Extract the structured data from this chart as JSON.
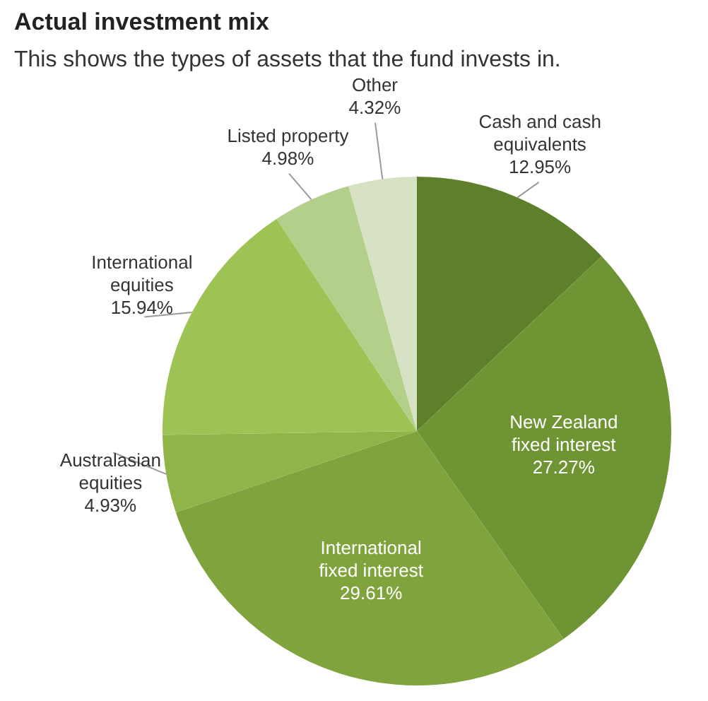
{
  "chart_data": {
    "type": "pie",
    "title": "Actual investment mix",
    "subtitle": "This shows the types of assets that the fund invests in.",
    "categories": [
      "Cash and cash equivalents",
      "New Zealand fixed interest",
      "International fixed interest",
      "Australasian equities",
      "International equities",
      "Listed property",
      "Other"
    ],
    "values": [
      12.95,
      27.27,
      29.61,
      4.93,
      15.94,
      4.98,
      4.32
    ],
    "colors": [
      "#5f802b",
      "#6f9433",
      "#80a43d",
      "#8fb548",
      "#9cc353",
      "#b3cf8a",
      "#d6e2c3"
    ],
    "value_labels": [
      "12.95%",
      "27.27%",
      "29.61%",
      "4.93%",
      "15.94%",
      "4.98%",
      "4.32%"
    ],
    "legend": false
  }
}
